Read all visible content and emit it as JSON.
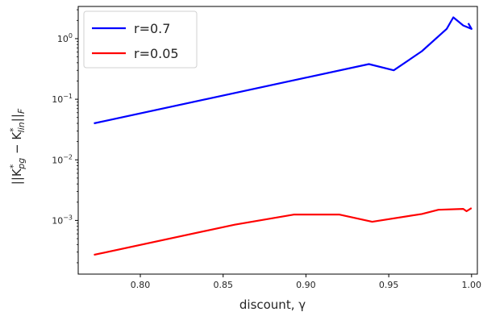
{
  "chart_data": {
    "type": "line",
    "title": "",
    "xlabel": "discount, γ",
    "ylabel": "||K*pg − K*lin||F",
    "ylabel_parts": {
      "open": "||K",
      "sup1": "*",
      "sub1": "pg",
      "minus": " − K",
      "sup2": "*",
      "sub2": "lin",
      "close": "||",
      "sub3": "F"
    },
    "xscale": "linear",
    "yscale": "log",
    "xlim": [
      0.7625,
      1.0035
    ],
    "ylim": [
      0.00013,
      3.4
    ],
    "x_ticks": [
      0.8,
      0.85,
      0.9,
      0.95,
      1.0
    ],
    "x_tick_labels": [
      "0.80",
      "0.85",
      "0.90",
      "0.95",
      "1.00"
    ],
    "y_ticks": [
      0.001,
      0.01,
      0.1,
      1
    ],
    "y_tick_labels": [
      {
        "base": "10",
        "exp": "−3"
      },
      {
        "base": "10",
        "exp": "−2"
      },
      {
        "base": "10",
        "exp": "−1"
      },
      {
        "base": "10",
        "exp": "0"
      }
    ],
    "grid": false,
    "legend_position": "top-left",
    "series": [
      {
        "name": "r=0.7",
        "color": "#0000ff",
        "x": [
          0.772,
          0.938,
          0.953,
          0.97,
          0.985,
          0.989,
          0.995,
          1.0,
          0.998
        ],
        "y": [
          0.04,
          0.38,
          0.3,
          0.62,
          1.45,
          2.25,
          1.65,
          1.45,
          1.8
        ]
      },
      {
        "name": "r=0.05",
        "color": "#ff0000",
        "x": [
          0.772,
          0.857,
          0.893,
          0.92,
          0.94,
          0.97,
          0.98,
          0.995,
          0.997,
          1.0
        ],
        "y": [
          0.00027,
          0.00085,
          0.00125,
          0.00125,
          0.00095,
          0.00128,
          0.0015,
          0.00155,
          0.00142,
          0.0016
        ]
      }
    ]
  }
}
